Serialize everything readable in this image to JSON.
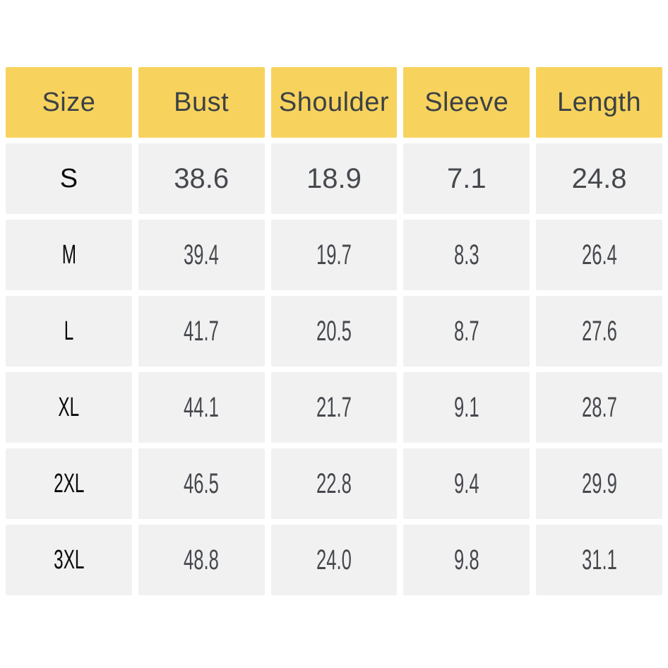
{
  "colors": {
    "page-bg": "#ffffff",
    "header-bg": "#f7d35e",
    "cell-bg": "#f1f1f1",
    "header-text": "#3c4145",
    "value-text": "#45484d",
    "size-text": "#0a0a0a"
  },
  "table": {
    "header": [
      "Size",
      "Bust",
      "Shoulder",
      "Sleeve",
      "Length"
    ],
    "rows": [
      [
        "S",
        "38.6",
        "18.9",
        "7.1",
        "24.8"
      ],
      [
        "M",
        "39.4",
        "19.7",
        "8.3",
        "26.4"
      ],
      [
        "L",
        "41.7",
        "20.5",
        "8.7",
        "27.6"
      ],
      [
        "XL",
        "44.1",
        "21.7",
        "9.1",
        "28.7"
      ],
      [
        "2XL",
        "46.5",
        "22.8",
        "9.4",
        "29.9"
      ],
      [
        "3XL",
        "48.8",
        "24.0",
        "9.8",
        "31.1"
      ]
    ]
  },
  "chart_data": {
    "type": "table",
    "columns": [
      "Size",
      "Bust",
      "Shoulder",
      "Sleeve",
      "Length"
    ],
    "rows": [
      {
        "size": "S",
        "bust": 38.6,
        "shoulder": 18.9,
        "sleeve": 7.1,
        "length": 24.8
      },
      {
        "size": "M",
        "bust": 39.4,
        "shoulder": 19.7,
        "sleeve": 8.3,
        "length": 26.4
      },
      {
        "size": "L",
        "bust": 41.7,
        "shoulder": 20.5,
        "sleeve": 8.7,
        "length": 27.6
      },
      {
        "size": "XL",
        "bust": 44.1,
        "shoulder": 21.7,
        "sleeve": 9.1,
        "length": 28.7
      },
      {
        "size": "2XL",
        "bust": 46.5,
        "shoulder": 22.8,
        "sleeve": 9.4,
        "length": 29.9
      },
      {
        "size": "3XL",
        "bust": 48.8,
        "shoulder": 24.0,
        "sleeve": 9.8,
        "length": 31.1
      }
    ],
    "title": "",
    "legend": false,
    "grid": false
  }
}
